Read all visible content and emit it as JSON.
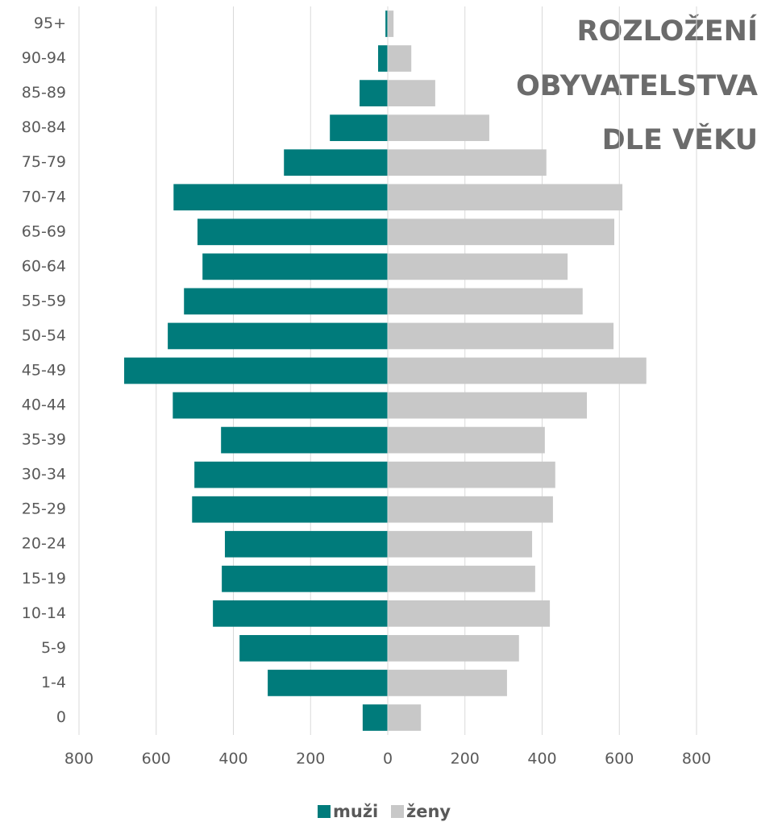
{
  "chart_data": {
    "type": "bar",
    "orientation": "horizontal",
    "title": [
      "ROZLOŽENÍ",
      "OBYVATELSTVA",
      "DLE VĚKU"
    ],
    "categories": [
      "95+",
      "90-94",
      "85-89",
      "80-84",
      "75-79",
      "70-74",
      "65-69",
      "60-64",
      "55-59",
      "50-54",
      "45-49",
      "40-44",
      "35-39",
      "30-34",
      "25-29",
      "20-24",
      "15-19",
      "10-14",
      "5-9",
      "1-4",
      "0"
    ],
    "series": [
      {
        "name": "muži",
        "color": "#007b7b",
        "values": [
          -6,
          -25,
          -73,
          -150,
          -269,
          -555,
          -493,
          -480,
          -528,
          -570,
          -683,
          -557,
          -432,
          -501,
          -507,
          -422,
          -430,
          -453,
          -384,
          -311,
          -65
        ]
      },
      {
        "name": "ženy",
        "color": "#c8c8c8",
        "values": [
          15,
          61,
          123,
          263,
          411,
          608,
          587,
          466,
          505,
          585,
          670,
          516,
          407,
          434,
          428,
          374,
          382,
          420,
          340,
          309,
          86
        ]
      }
    ],
    "xlim": [
      -800,
      800
    ],
    "xticks": [
      {
        "value": -800,
        "label": "800"
      },
      {
        "value": -600,
        "label": "600"
      },
      {
        "value": -400,
        "label": "400"
      },
      {
        "value": -200,
        "label": "200"
      },
      0,
      200,
      400,
      600,
      800
    ],
    "grid": true,
    "legend": "bottom"
  }
}
